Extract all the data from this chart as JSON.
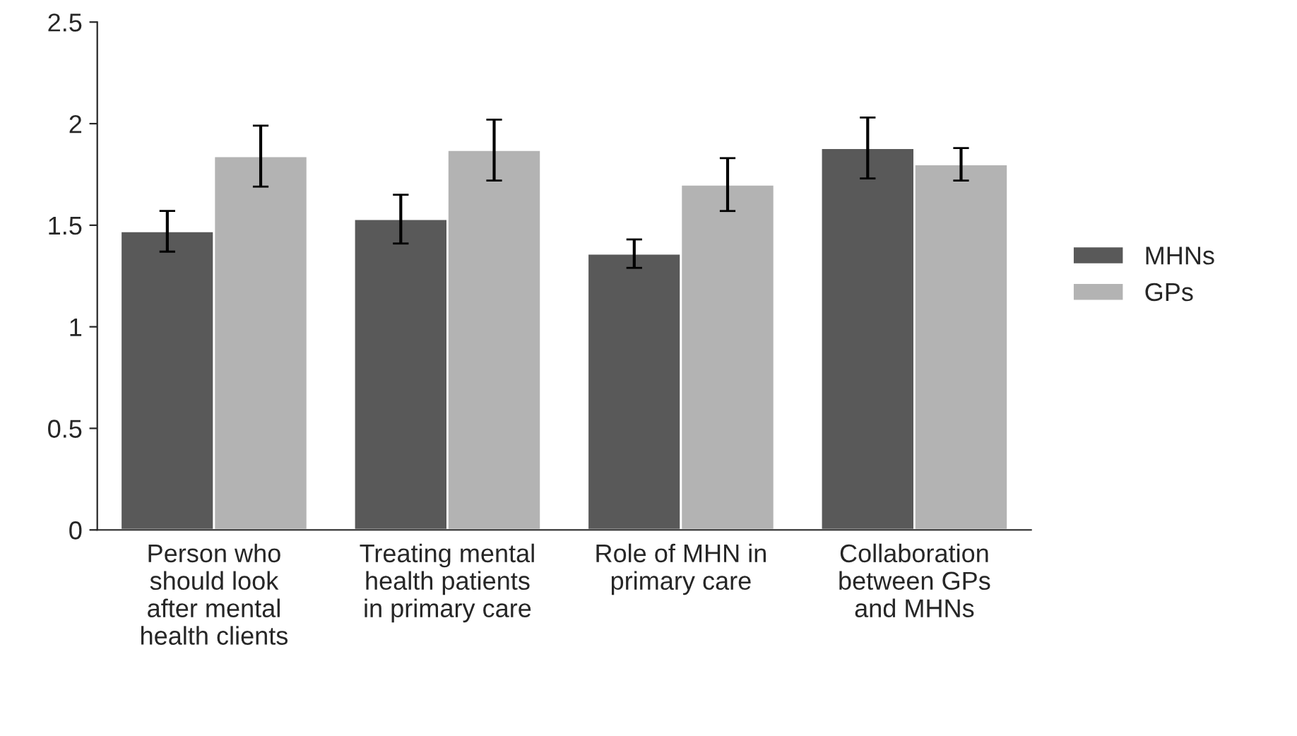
{
  "chart_data": {
    "type": "bar",
    "categories": [
      "Person who\nshould look\nafter mental\nhealth clients",
      "Treating mental\nhealth patients\nin primary care",
      "Role of MHN in\nprimary care",
      "Collaboration\nbetween GPs\nand MHNs"
    ],
    "series": [
      {
        "name": "MHNs",
        "color": "#595959",
        "values": [
          1.47,
          1.53,
          1.36,
          1.88
        ],
        "errors": [
          0.1,
          0.12,
          0.07,
          0.15
        ]
      },
      {
        "name": "GPs",
        "color": "#b3b3b3",
        "values": [
          1.84,
          1.87,
          1.7,
          1.8
        ],
        "errors": [
          0.15,
          0.15,
          0.13,
          0.08
        ]
      }
    ],
    "ylim": [
      0,
      2.5
    ],
    "yticks": [
      0,
      0.5,
      1,
      1.5,
      2,
      2.5
    ],
    "grid": false,
    "legend": "right"
  }
}
